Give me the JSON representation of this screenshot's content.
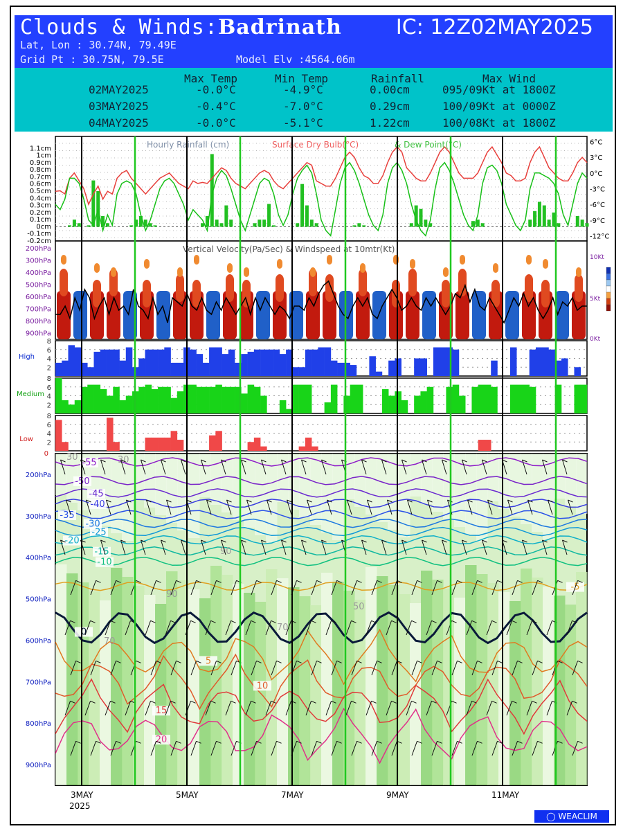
{
  "header": {
    "title_prefix": "Clouds & Winds:",
    "location": "Badrinath",
    "ic": "IC: 12Z02MAY2025",
    "latlon": "Lat, Lon : 30.74N, 79.49E",
    "gridpt": "Grid Pt  : 30.75N, 79.5E",
    "model_elv": "Model Elv :4564.06m"
  },
  "summary": {
    "columns": [
      "Max Temp",
      "Min Temp",
      "Rainfall",
      "Max Wind"
    ],
    "rows": [
      {
        "date": "02MAY2025",
        "max_temp": "-0.0°C",
        "min_temp": "-4.9°C",
        "rain": "0.00cm",
        "wind": "095/09Kt at 1800Z"
      },
      {
        "date": "03MAY2025",
        "max_temp": "-0.4°C",
        "min_temp": "-7.0°C",
        "rain": "0.29cm",
        "wind": "100/09Kt at 0000Z"
      },
      {
        "date": "04MAY2025",
        "max_temp": "-0.0°C",
        "min_temp": "-5.1°C",
        "rain": "1.22cm",
        "wind": "100/08Kt at 1800Z"
      }
    ]
  },
  "colors": {
    "header_bg": "#2340ff",
    "summary_bg": "#00c3c9",
    "dry_bulb": "#e8403c",
    "dew_point": "#18c018",
    "rain_bar": "#22c022",
    "high_cloud": "#2040e8",
    "medium_cloud": "#18d418",
    "low_cloud": "#f04848",
    "day_line": "#20c820"
  },
  "chart_data": [
    {
      "type": "line",
      "panel": "rain-temp",
      "legend": [
        "Hourly Rainfall (cm)",
        "Surface Dry Bulb(°C)",
        "& Dew Point(°C)"
      ],
      "left_ticks": [
        "1.1cm",
        "1cm",
        "0.9cm",
        "0.8cm",
        "0.7cm",
        "0.6cm",
        "0.5cm",
        "0.4cm",
        "0.3cm",
        "0.2cm",
        "0.1cm",
        "0cm",
        "-0.1cm",
        "-0.2cm"
      ],
      "right_ticks": [
        "6°C",
        "3°C",
        "0°C",
        "-3°C",
        "-6°C",
        "-9°C",
        "-12°C"
      ],
      "ylim_rain": [
        -0.2,
        1.2
      ],
      "ylim_temp": [
        -13,
        7
      ],
      "dry_bulb": [
        -3.5,
        -3.4,
        -4,
        -1,
        0,
        -1.5,
        -3,
        -6,
        -4,
        -2.5,
        -5,
        -3.5,
        -4,
        -1,
        0,
        0.5,
        -1,
        -2,
        -3,
        -4,
        -3,
        -2,
        -1,
        -0.5,
        0,
        -1,
        -2,
        -2.5,
        -3,
        -1.5,
        -2,
        -1.8,
        -2,
        -1,
        0,
        1,
        0.5,
        -1,
        -2,
        -2.5,
        -3,
        -2,
        -1,
        0,
        0.5,
        0,
        -1.5,
        -2.5,
        -3,
        -2,
        -1,
        0,
        1,
        2,
        1.5,
        -1.5,
        -2,
        -2.5,
        -2.5,
        -1,
        1,
        3,
        4,
        3,
        1,
        -0.5,
        -1,
        -2,
        -2,
        -0.5,
        2,
        4,
        5,
        4,
        1,
        0,
        -1,
        -1.5,
        -1.5,
        0,
        2,
        4,
        5,
        4,
        2,
        0,
        -1,
        -1,
        -1,
        0,
        2,
        4,
        5,
        3.5,
        2,
        0,
        -0.5,
        -1.5,
        -1.5,
        -1,
        2,
        4,
        5,
        3,
        1,
        0,
        -1,
        -1.5,
        -1.5,
        0,
        2,
        3,
        2
      ],
      "dew_point": [
        -6,
        -7,
        -5,
        -1,
        -1,
        -2,
        -5,
        -9,
        -10,
        -7,
        -11,
        -8,
        -10,
        -4,
        -2,
        -1.5,
        -2,
        -4,
        -8,
        -11,
        -9,
        -6,
        -3,
        -1.5,
        -1,
        -2,
        -4,
        -6,
        -9,
        -7,
        -8,
        -9,
        -11,
        -4,
        -1,
        0.5,
        -0.5,
        -3,
        -6,
        -9,
        -11,
        -8,
        -5,
        -2,
        -1,
        -1.5,
        -4,
        -8,
        -10,
        -8,
        -4,
        -1,
        0.5,
        1.5,
        0,
        -4,
        -9,
        -11,
        -12,
        -7,
        -2,
        1,
        2,
        0.5,
        -2,
        -5,
        -8,
        -10,
        -11,
        -8,
        -2,
        1,
        2,
        0.5,
        -2,
        -6,
        -9,
        -11,
        -12,
        -9,
        -3,
        1,
        2,
        0.5,
        -2,
        -5,
        -8,
        -10,
        -11,
        -8,
        -2,
        1,
        1.5,
        0.5,
        -2,
        -6,
        -8,
        -10,
        -11,
        -9,
        -3,
        0,
        0,
        -0.5,
        -1,
        -2,
        -4,
        -8,
        -10,
        -6,
        -2,
        0,
        -1
      ],
      "rainfall": [
        0,
        0,
        0,
        0.02,
        0.1,
        0.05,
        0,
        0.02,
        0.65,
        0.5,
        0.15,
        0.05,
        0,
        0,
        0,
        0,
        0.02,
        0.1,
        0.15,
        0.1,
        0.05,
        0.02,
        0,
        0,
        0,
        0,
        0,
        0,
        0,
        0,
        0,
        0.05,
        0.15,
        1.02,
        0.1,
        0.05,
        0.3,
        0.1,
        0,
        0,
        0,
        0,
        0.05,
        0.1,
        0.1,
        0.32,
        0.02,
        0,
        0,
        0,
        0,
        0.05,
        0.6,
        0.3,
        0.1,
        0.05,
        0,
        0,
        0,
        0,
        0,
        0,
        0,
        0.02,
        0.05,
        0.02,
        0,
        0,
        0,
        0,
        0,
        0,
        0,
        0,
        0,
        0.05,
        0.3,
        0.25,
        0.1,
        0.05,
        0,
        0,
        0,
        0,
        0,
        0,
        0,
        0,
        0.08,
        0.1,
        0.05,
        0,
        0,
        0,
        0,
        0,
        0,
        0,
        0,
        0,
        0.1,
        0.22,
        0.35,
        0.3,
        0.1,
        0.2,
        0.05,
        0,
        0,
        0,
        0.15,
        0.1,
        0.05
      ]
    },
    {
      "type": "heatmap",
      "panel": "vertical-velocity",
      "legend": "Vertical Velocity(Pa/Sec) & Windspeed at 10mtr(Kt)",
      "y_ticks": [
        "200hPa",
        "300hPa",
        "400hPa",
        "500hPa",
        "600hPa",
        "700hPa",
        "800hPa",
        "900hPa"
      ],
      "right_ticks": [
        "10Kt",
        "5Kt",
        "0Kt"
      ],
      "windspeed_kt": [
        3,
        3,
        4,
        2.5,
        5,
        3.5,
        6,
        5,
        2.5,
        4,
        5,
        3,
        5,
        3.5,
        4,
        3,
        6,
        4,
        3.5,
        2.5,
        5,
        3,
        4,
        2,
        5,
        4.5,
        4,
        5.5,
        4,
        3.5,
        5,
        3.5,
        3,
        4.5,
        3.5,
        5,
        4,
        3,
        4,
        5,
        3,
        5,
        3.5,
        5,
        4,
        3,
        4,
        3.5,
        2.5,
        4,
        4,
        3.5,
        5,
        4,
        5.5,
        6.5,
        7,
        5.5,
        4,
        3,
        2.5,
        4,
        5,
        4,
        5,
        3,
        2.5,
        4,
        5,
        6,
        5,
        3.5,
        4,
        5,
        4,
        3.5,
        5,
        4,
        5,
        4,
        3,
        4,
        5.5,
        5,
        6.5,
        4.5,
        6,
        4,
        3.5,
        5,
        4,
        3,
        2,
        3.5,
        5,
        4,
        5.5,
        4,
        5,
        3.5,
        2.5,
        3.5,
        5,
        3,
        4.5,
        4,
        5,
        3.5,
        4,
        4
      ],
      "updraft_blocks": [
        "red",
        "blue",
        "red",
        "red",
        "blue",
        "red",
        "blue",
        "red",
        "red",
        "blue",
        "red",
        "red",
        "blue",
        "red",
        "blue",
        "red",
        "red",
        "blue",
        "red",
        "blue",
        "red",
        "red",
        "blue",
        "red",
        "red",
        "blue",
        "red",
        "blue",
        "red",
        "red",
        "blue",
        "red"
      ]
    },
    {
      "type": "bar",
      "panel": "high-cloud",
      "label": "High",
      "y_ticks": [
        "8",
        "6",
        "4",
        "2"
      ],
      "ylim": [
        0,
        8
      ],
      "values": [
        3,
        3.5,
        7,
        6.5,
        3,
        2,
        5.5,
        6,
        6,
        6,
        3.5,
        6.5,
        2,
        4,
        6,
        6,
        6,
        6.5,
        3,
        3,
        6.5,
        6,
        5,
        3,
        6.5,
        6.5,
        5,
        6,
        3,
        5,
        5.5,
        6,
        6,
        6,
        6,
        5,
        6,
        2,
        2,
        6,
        6,
        6.5,
        6.5,
        3.5,
        3,
        3,
        2.5,
        0,
        0,
        4.5,
        1,
        0,
        3.5,
        4,
        0,
        0,
        4,
        4,
        0,
        6.5,
        6.5,
        6.5,
        6,
        0,
        0,
        0,
        0,
        0,
        3.5,
        0,
        0,
        6.5,
        0,
        0,
        6,
        6.5,
        6.5,
        6,
        3.5,
        4,
        0,
        2,
        0
      ]
    },
    {
      "type": "bar",
      "panel": "medium-cloud",
      "label": "Medium",
      "y_ticks": [
        "8",
        "6",
        "4",
        "2"
      ],
      "ylim": [
        0,
        8
      ],
      "values": [
        8,
        3,
        2,
        3,
        6,
        6.5,
        6.5,
        5.5,
        4,
        6,
        3,
        4,
        5,
        6,
        6.5,
        5.5,
        6,
        6,
        3.5,
        5,
        6.5,
        6.5,
        6,
        6,
        6,
        6.5,
        6,
        6,
        6,
        4.5,
        6.5,
        6,
        4,
        0,
        0,
        3,
        1,
        6.5,
        6.5,
        6.5,
        0,
        0,
        2.5,
        6.5,
        0,
        4,
        6.5,
        6.5,
        0,
        0,
        0,
        5.5,
        4,
        5,
        3,
        0,
        4,
        5,
        6,
        0,
        0,
        6,
        6.5,
        4,
        0,
        6,
        6.5,
        6.5,
        6,
        0,
        0,
        6.5,
        6.5,
        6.5,
        6,
        0,
        0,
        0,
        6.5,
        0,
        0,
        6.5,
        6.5
      ]
    },
    {
      "type": "bar",
      "panel": "low-cloud",
      "label": "Low",
      "y_ticks": [
        "8",
        "6",
        "4",
        "2"
      ],
      "ylim": [
        0,
        8
      ],
      "values": [
        7,
        2,
        0,
        0,
        0,
        0,
        0,
        0,
        7.5,
        2,
        0,
        0,
        0,
        0,
        3,
        3,
        3,
        3,
        4.5,
        2.5,
        0,
        0,
        0,
        0,
        3.5,
        4.5,
        0,
        0,
        0,
        0,
        2,
        3,
        1,
        0,
        0,
        0,
        0,
        0,
        1,
        3,
        1,
        0,
        0,
        0,
        0,
        0,
        0,
        0,
        0,
        0,
        0,
        0,
        0,
        0,
        0,
        0,
        0,
        0,
        0,
        0,
        0,
        0,
        0,
        0,
        0,
        0,
        2.5,
        2.5,
        0,
        0,
        0,
        0,
        0,
        0,
        0,
        0,
        0,
        0,
        0,
        0,
        0,
        0,
        0
      ]
    },
    {
      "type": "heatmap",
      "panel": "cross-section",
      "y_ticks": [
        "200hPa",
        "300hPa",
        "400hPa",
        "500hPa",
        "600hPa",
        "700hPa",
        "800hPa",
        "900hPa"
      ],
      "x_ticks": [
        "3MAY",
        "5MAY",
        "7MAY",
        "9MAY",
        "11MAY"
      ],
      "x_year": "2025",
      "isotherms_c": [
        -55,
        -50,
        -45,
        -40,
        -35,
        -30,
        -25,
        -20,
        -15,
        -10,
        -5,
        0,
        5,
        10,
        15,
        20
      ],
      "isotherm_labels": [
        "-55",
        "-50",
        "-45",
        "-40",
        "-35",
        "-30",
        "-25",
        "-20",
        "-15",
        "-10",
        "-5",
        "0",
        "5",
        "10",
        "15",
        "20"
      ],
      "humidity_labels": [
        "30",
        "50",
        "70",
        "90"
      ]
    }
  ],
  "brand": "WEACLIM"
}
